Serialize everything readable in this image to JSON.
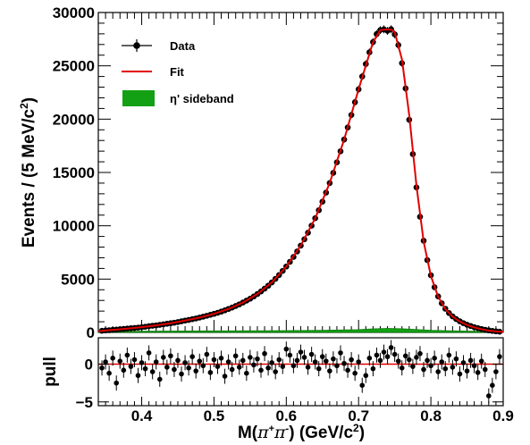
{
  "chart_data": [
    {
      "type": "scatter",
      "panel": "main",
      "ylabel_parts": {
        "pre": "Events / (5 MeV/c",
        "sup": "2",
        "post": ")"
      },
      "xlim": [
        0.34,
        0.9
      ],
      "ylim": [
        0,
        30000
      ],
      "y_ticks": [
        "0",
        "5000",
        "10000",
        "15000",
        "20000",
        "25000",
        "30000"
      ],
      "legend": {
        "position": "top-left",
        "entries": [
          {
            "label": "Data",
            "style": "marker-errorbar"
          },
          {
            "label": "Fit",
            "style": "line"
          },
          {
            "label": "η' sideband",
            "style": "fill"
          }
        ]
      },
      "series": [
        {
          "name": "Data",
          "x": [
            0.345,
            0.35,
            0.355,
            0.36,
            0.365,
            0.37,
            0.375,
            0.38,
            0.385,
            0.39,
            0.395,
            0.4,
            0.405,
            0.41,
            0.415,
            0.42,
            0.425,
            0.43,
            0.435,
            0.44,
            0.445,
            0.45,
            0.455,
            0.46,
            0.465,
            0.47,
            0.475,
            0.48,
            0.485,
            0.49,
            0.495,
            0.5,
            0.505,
            0.51,
            0.515,
            0.52,
            0.525,
            0.53,
            0.535,
            0.54,
            0.545,
            0.55,
            0.555,
            0.56,
            0.565,
            0.57,
            0.575,
            0.58,
            0.585,
            0.59,
            0.595,
            0.6,
            0.605,
            0.61,
            0.615,
            0.62,
            0.625,
            0.63,
            0.635,
            0.64,
            0.645,
            0.65,
            0.655,
            0.66,
            0.665,
            0.67,
            0.675,
            0.68,
            0.685,
            0.69,
            0.695,
            0.7,
            0.705,
            0.71,
            0.715,
            0.72,
            0.725,
            0.73,
            0.735,
            0.74,
            0.745,
            0.75,
            0.755,
            0.76,
            0.765,
            0.77,
            0.775,
            0.78,
            0.785,
            0.79,
            0.795,
            0.8,
            0.805,
            0.81,
            0.815,
            0.82,
            0.825,
            0.83,
            0.835,
            0.84,
            0.845,
            0.85,
            0.855,
            0.86,
            0.865,
            0.87,
            0.875,
            0.88,
            0.885,
            0.89,
            0.895
          ],
          "y": [
            150,
            180,
            210,
            240,
            270,
            300,
            330,
            360,
            390,
            420,
            450,
            490,
            530,
            580,
            620,
            660,
            710,
            760,
            810,
            860,
            910,
            970,
            1040,
            1110,
            1170,
            1240,
            1310,
            1390,
            1470,
            1560,
            1650,
            1740,
            1840,
            1950,
            2070,
            2200,
            2330,
            2480,
            2630,
            2800,
            2980,
            3160,
            3370,
            3600,
            3840,
            4100,
            4380,
            4690,
            5020,
            5380,
            5770,
            6180,
            6620,
            7080,
            7590,
            8140,
            8730,
            9350,
            10010,
            10710,
            11460,
            12260,
            13110,
            14010,
            14960,
            15950,
            16990,
            18090,
            19220,
            20390,
            21590,
            22800,
            24000,
            25170,
            26270,
            27230,
            27980,
            28350,
            28420,
            28280,
            28430,
            27950,
            26950,
            25250,
            22880,
            19940,
            16720,
            13600,
            10850,
            8600,
            6780,
            5360,
            4240,
            3380,
            2730,
            2220,
            1820,
            1500,
            1250,
            1040,
            870,
            720,
            600,
            490,
            400,
            320,
            250,
            190,
            140,
            100,
            70
          ]
        },
        {
          "name": "Fit",
          "x": [
            0.34,
            0.36,
            0.38,
            0.4,
            0.42,
            0.44,
            0.46,
            0.48,
            0.5,
            0.52,
            0.54,
            0.56,
            0.58,
            0.6,
            0.62,
            0.64,
            0.66,
            0.68,
            0.7,
            0.72,
            0.73,
            0.74,
            0.745,
            0.75,
            0.76,
            0.77,
            0.78,
            0.79,
            0.8,
            0.81,
            0.82,
            0.83,
            0.84,
            0.85,
            0.86,
            0.87,
            0.88,
            0.89,
            0.9
          ],
          "y": [
            120,
            240,
            360,
            490,
            660,
            860,
            1110,
            1390,
            1740,
            2200,
            2800,
            3600,
            4690,
            6180,
            8140,
            10710,
            14010,
            18090,
            22800,
            27230,
            28350,
            28420,
            28400,
            28150,
            25600,
            20400,
            13800,
            8500,
            5300,
            3350,
            2200,
            1480,
            1020,
            700,
            470,
            300,
            170,
            90,
            40
          ]
        },
        {
          "name": "η' sideband",
          "x": [
            0.34,
            0.4,
            0.5,
            0.6,
            0.65,
            0.7,
            0.72,
            0.74,
            0.76,
            0.78,
            0.8,
            0.85,
            0.9
          ],
          "y": [
            80,
            110,
            140,
            170,
            200,
            260,
            330,
            380,
            340,
            270,
            200,
            120,
            60
          ]
        }
      ]
    },
    {
      "type": "scatter",
      "panel": "pull",
      "xlabel_parts": {
        "pre": "M(",
        "pi1": "π",
        "sup1": "+",
        "pi2": "π",
        "sup2": "-",
        "mid": ") (GeV/c",
        "sup3": "2",
        "post": ")"
      },
      "ylabel": "pull",
      "xlim": [
        0.34,
        0.9
      ],
      "ylim": [
        -5.5,
        3.5
      ],
      "x_ticks": [
        "0.4",
        "0.5",
        "0.6",
        "0.7",
        "0.8",
        "0.9"
      ],
      "y_ticks": [
        "−5",
        "0"
      ],
      "reference_line": 0,
      "series": [
        {
          "name": "pull",
          "x": [
            0.345,
            0.35,
            0.355,
            0.36,
            0.365,
            0.37,
            0.375,
            0.38,
            0.385,
            0.39,
            0.395,
            0.4,
            0.405,
            0.41,
            0.415,
            0.42,
            0.425,
            0.43,
            0.435,
            0.44,
            0.445,
            0.45,
            0.455,
            0.46,
            0.465,
            0.47,
            0.475,
            0.48,
            0.485,
            0.49,
            0.495,
            0.5,
            0.505,
            0.51,
            0.515,
            0.52,
            0.525,
            0.53,
            0.535,
            0.54,
            0.545,
            0.55,
            0.555,
            0.56,
            0.565,
            0.57,
            0.575,
            0.58,
            0.585,
            0.59,
            0.595,
            0.6,
            0.605,
            0.61,
            0.615,
            0.62,
            0.625,
            0.63,
            0.635,
            0.64,
            0.645,
            0.65,
            0.655,
            0.66,
            0.665,
            0.67,
            0.675,
            0.68,
            0.685,
            0.69,
            0.695,
            0.7,
            0.705,
            0.71,
            0.715,
            0.72,
            0.725,
            0.73,
            0.735,
            0.74,
            0.745,
            0.75,
            0.755,
            0.76,
            0.765,
            0.77,
            0.775,
            0.78,
            0.785,
            0.79,
            0.795,
            0.8,
            0.805,
            0.81,
            0.815,
            0.82,
            0.825,
            0.83,
            0.835,
            0.84,
            0.845,
            0.85,
            0.855,
            0.86,
            0.865,
            0.87,
            0.875,
            0.88,
            0.885,
            0.89,
            0.895
          ],
          "y": [
            -0.5,
            0.3,
            -1.2,
            0.8,
            -2.5,
            0.4,
            -0.8,
            1.2,
            -0.3,
            0.6,
            -1.5,
            0.2,
            -0.6,
            1.5,
            -1.0,
            0.3,
            -2.0,
            0.9,
            -0.4,
            1.1,
            -0.7,
            0.5,
            -1.3,
            0.2,
            -0.5,
            1.0,
            -0.9,
            0.4,
            -0.2,
            1.3,
            -1.1,
            0.6,
            -0.3,
            0.8,
            -1.6,
            0.3,
            -0.7,
            1.1,
            -0.4,
            0.5,
            -1.2,
            0.9,
            -0.1,
            0.7,
            -0.8,
            1.4,
            -0.5,
            0.2,
            -1.0,
            0.6,
            -0.3,
            2.0,
            1.2,
            -0.2,
            0.5,
            1.6,
            0.9,
            -0.4,
            1.3,
            0.3,
            -0.6,
            1.0,
            0.4,
            -0.9,
            0.7,
            -0.2,
            1.5,
            0.1,
            -0.8,
            0.6,
            -1.2,
            0.3,
            -2.8,
            -1.5,
            0.8,
            -0.6,
            1.2,
            0.5,
            1.6,
            1.0,
            2.2,
            1.3,
            0.4,
            -0.5,
            1.1,
            0.6,
            -0.3,
            0.9,
            1.4,
            -0.7,
            0.5,
            -0.2,
            0.8,
            -1.0,
            0.3,
            -0.6,
            1.2,
            -0.4,
            0.7,
            -1.3,
            0.2,
            -0.9,
            0.5,
            -0.2,
            -1.1,
            0.4,
            -0.7,
            -4.2,
            -2.8,
            -1.0,
            1.0
          ]
        }
      ]
    }
  ]
}
